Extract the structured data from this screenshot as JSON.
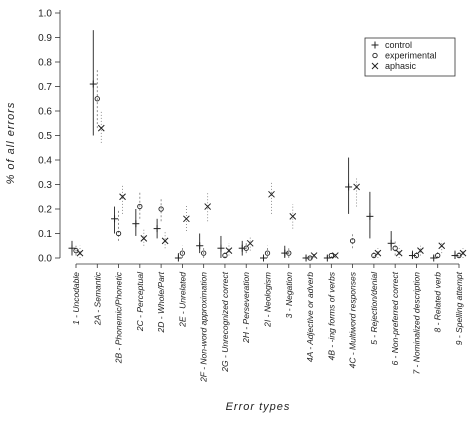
{
  "chart_data": {
    "type": "scatter",
    "title": "",
    "xlabel": "Error types",
    "ylabel": "% of all errors",
    "ylim": [
      0,
      1.0
    ],
    "yticks": [
      "0.0",
      "0.1",
      "0.2",
      "0.3",
      "0.4",
      "0.5",
      "0.6",
      "0.7",
      "0.8",
      "0.9",
      "1.0"
    ],
    "categories": [
      "1 - Uncodable",
      "2A - Semantic",
      "2B - Phonemic/Phonetic",
      "2C - Perceptual",
      "2D - Whole/Part",
      "2E - Unrelated",
      "2F - Non-word approximation",
      "2G - Unrecognized correct",
      "2H - Perseveration",
      "2I - Neologism",
      "3 - Negation",
      "4A - Adjective or adverb",
      "4B - -ing forms of verbs",
      "4C - Multiword responses",
      "5 - Rejection/denial",
      "6 - Non-preferred correct",
      "7 - Nominalized description",
      "8 - Related verb",
      "9 - Spelling attempt"
    ],
    "legend": {
      "position": "top-right",
      "entries": [
        "control",
        "experimental",
        "aphasic"
      ]
    },
    "series": [
      {
        "name": "control",
        "marker": "plus",
        "values": [
          0.04,
          0.71,
          0.16,
          0.14,
          0.12,
          0.0,
          0.05,
          0.04,
          0.04,
          0.0,
          0.02,
          0.0,
          0.0,
          0.29,
          0.17,
          0.06,
          0.01,
          0.0,
          0.01
        ],
        "range": [
          [
            0.01,
            0.07
          ],
          [
            0.5,
            0.93
          ],
          [
            0.1,
            0.21
          ],
          [
            0.09,
            0.2
          ],
          [
            0.08,
            0.16
          ],
          [
            0.0,
            0.02
          ],
          [
            0.02,
            0.1
          ],
          [
            0.0,
            0.09
          ],
          [
            0.01,
            0.07
          ],
          [
            0.0,
            0.01
          ],
          [
            0.0,
            0.05
          ],
          [
            0.0,
            0.01
          ],
          [
            0.0,
            0.01
          ],
          [
            0.18,
            0.41
          ],
          [
            0.08,
            0.27
          ],
          [
            0.03,
            0.11
          ],
          [
            0.0,
            0.03
          ],
          [
            0.0,
            0.01
          ],
          [
            0.0,
            0.03
          ]
        ]
      },
      {
        "name": "experimental",
        "marker": "circle",
        "values": [
          0.03,
          0.65,
          0.1,
          0.21,
          0.2,
          0.02,
          0.02,
          0.01,
          0.04,
          0.02,
          0.02,
          0.0,
          0.01,
          0.07,
          0.01,
          0.04,
          0.01,
          0.01,
          0.01
        ],
        "range": [
          [
            0.01,
            0.05
          ],
          [
            0.53,
            0.77
          ],
          [
            0.07,
            0.2
          ],
          [
            0.16,
            0.27
          ],
          [
            0.15,
            0.24
          ],
          [
            0.0,
            0.05
          ],
          [
            0.0,
            0.05
          ],
          [
            0.0,
            0.03
          ],
          [
            0.02,
            0.07
          ],
          [
            0.0,
            0.05
          ],
          [
            0.0,
            0.04
          ],
          [
            0.0,
            0.01
          ],
          [
            0.0,
            0.02
          ],
          [
            0.04,
            0.1
          ],
          [
            0.0,
            0.03
          ],
          [
            0.01,
            0.07
          ],
          [
            0.0,
            0.03
          ],
          [
            0.0,
            0.03
          ],
          [
            0.0,
            0.03
          ]
        ]
      },
      {
        "name": "aphasic",
        "marker": "cross",
        "values": [
          0.02,
          0.53,
          0.25,
          0.08,
          0.07,
          0.16,
          0.21,
          0.03,
          0.06,
          0.26,
          0.17,
          0.01,
          0.01,
          0.29,
          0.02,
          0.02,
          0.03,
          0.05,
          0.02
        ],
        "range": [
          [
            0.0,
            0.05
          ],
          [
            0.47,
            0.6
          ],
          [
            0.18,
            0.3
          ],
          [
            0.05,
            0.12
          ],
          [
            0.04,
            0.11
          ],
          [
            0.11,
            0.22
          ],
          [
            0.15,
            0.27
          ],
          [
            0.01,
            0.06
          ],
          [
            0.03,
            0.09
          ],
          [
            0.18,
            0.31
          ],
          [
            0.12,
            0.22
          ],
          [
            0.0,
            0.02
          ],
          [
            0.0,
            0.02
          ],
          [
            0.21,
            0.33
          ],
          [
            0.0,
            0.04
          ],
          [
            0.0,
            0.05
          ],
          [
            0.01,
            0.05
          ],
          [
            0.02,
            0.07
          ],
          [
            0.0,
            0.04
          ]
        ]
      }
    ]
  }
}
